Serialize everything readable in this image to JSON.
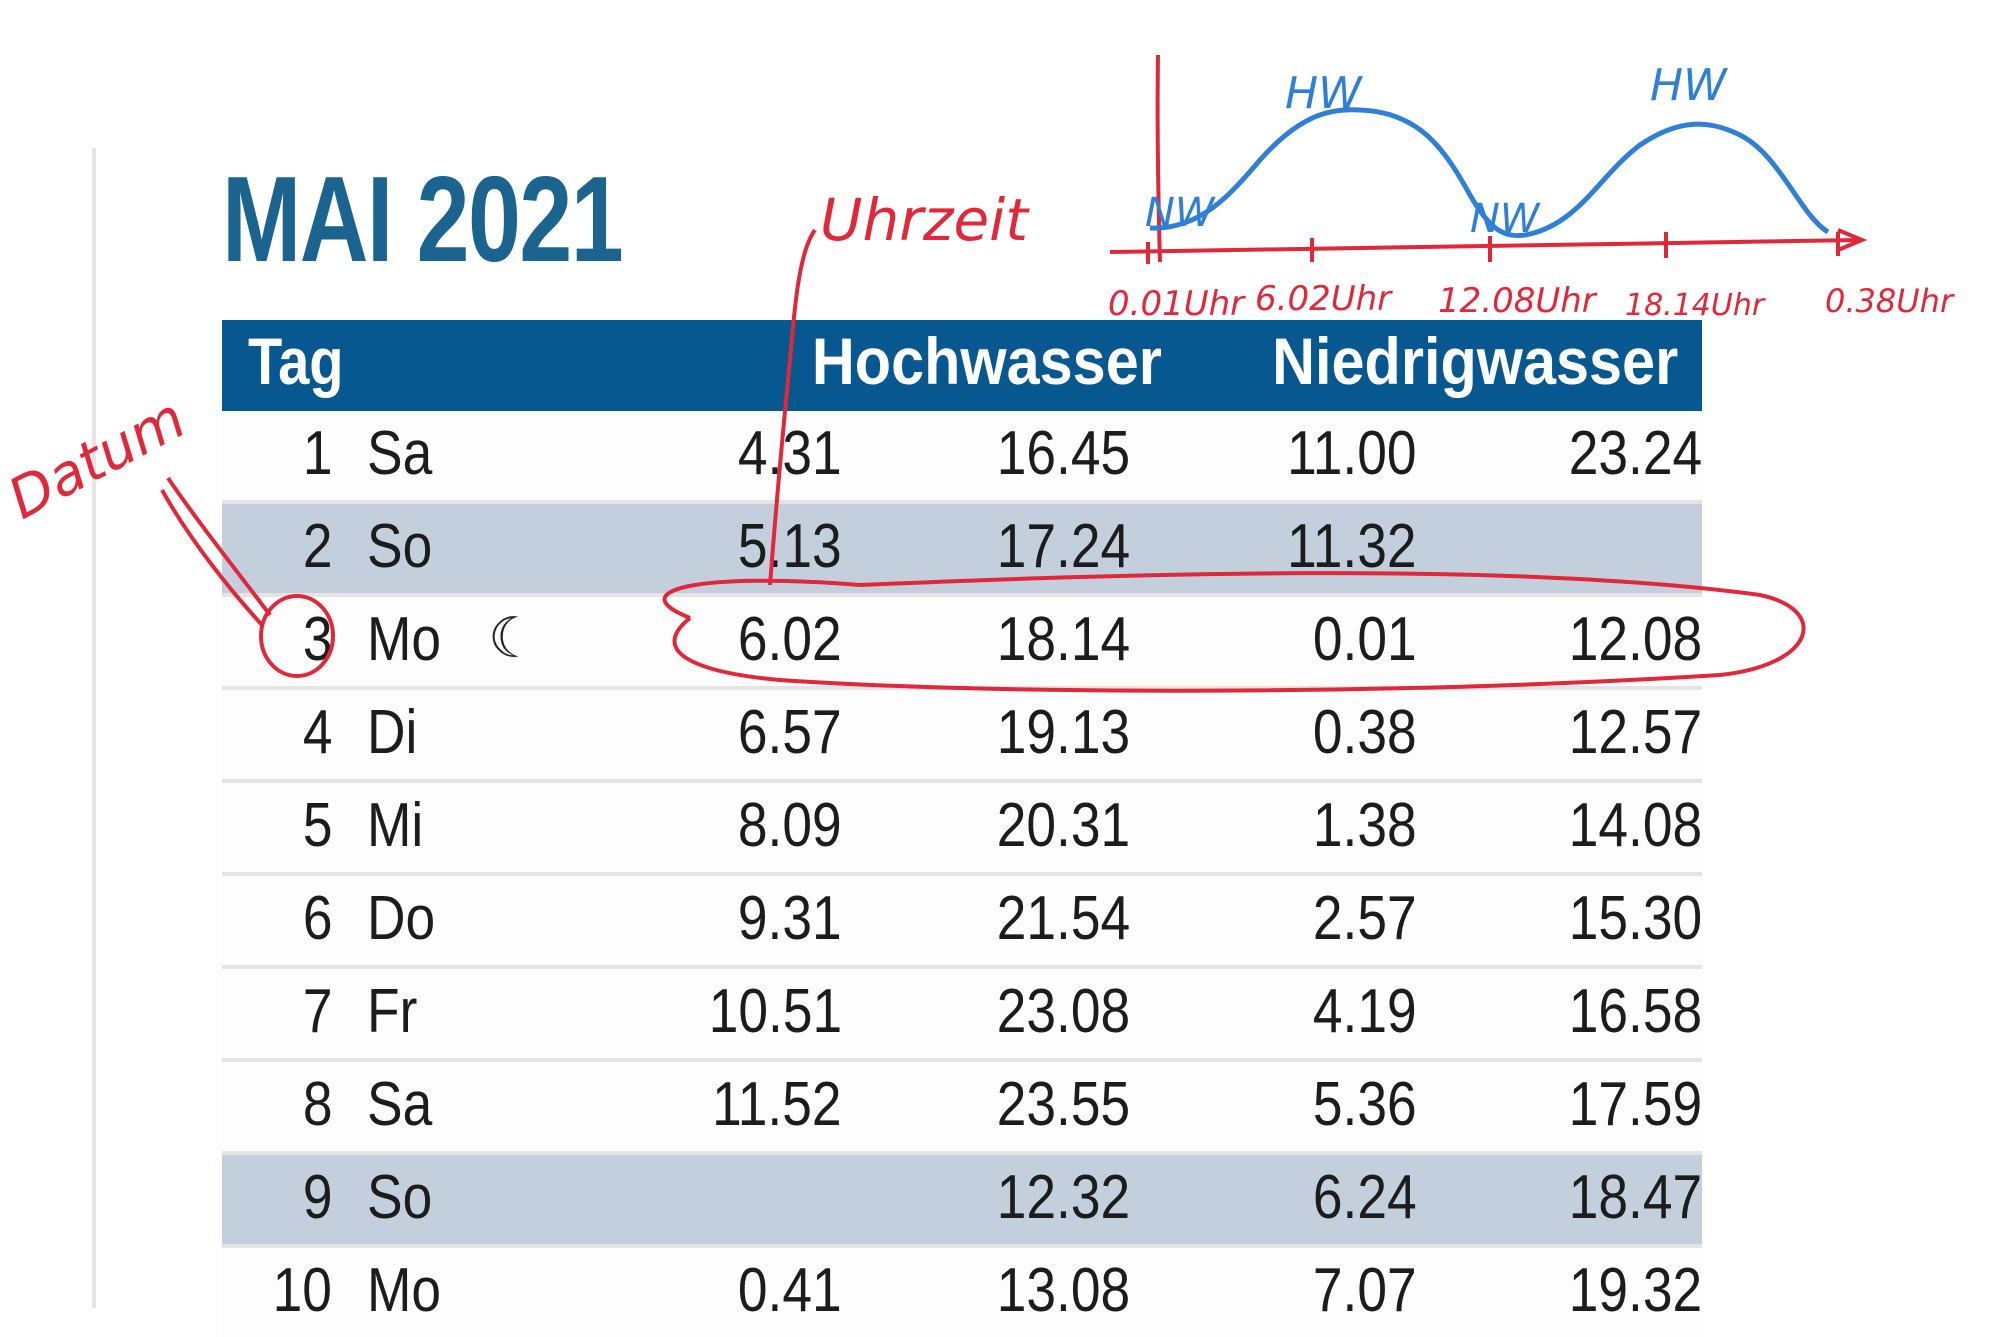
{
  "month_title": "MAI 2021",
  "table": {
    "headers": {
      "day": "Tag",
      "high_water": "Hochwasser",
      "low_water": "Niedrigwasser"
    },
    "rows": [
      {
        "day": "1",
        "weekday": "Sa",
        "moon": "",
        "hw1": "4.31",
        "hw2": "16.45",
        "nw1": "11.00",
        "nw2": "23.24",
        "shaded": false
      },
      {
        "day": "2",
        "weekday": "So",
        "moon": "",
        "hw1": "5.13",
        "hw2": "17.24",
        "nw1": "11.32",
        "nw2": "",
        "shaded": true
      },
      {
        "day": "3",
        "weekday": "Mo",
        "moon": "☾",
        "hw1": "6.02",
        "hw2": "18.14",
        "nw1": "0.01",
        "nw2": "12.08",
        "shaded": false
      },
      {
        "day": "4",
        "weekday": "Di",
        "moon": "",
        "hw1": "6.57",
        "hw2": "19.13",
        "nw1": "0.38",
        "nw2": "12.57",
        "shaded": false
      },
      {
        "day": "5",
        "weekday": "Mi",
        "moon": "",
        "hw1": "8.09",
        "hw2": "20.31",
        "nw1": "1.38",
        "nw2": "14.08",
        "shaded": false
      },
      {
        "day": "6",
        "weekday": "Do",
        "moon": "",
        "hw1": "9.31",
        "hw2": "21.54",
        "nw1": "2.57",
        "nw2": "15.30",
        "shaded": false
      },
      {
        "day": "7",
        "weekday": "Fr",
        "moon": "",
        "hw1": "10.51",
        "hw2": "23.08",
        "nw1": "4.19",
        "nw2": "16.58",
        "shaded": false
      },
      {
        "day": "8",
        "weekday": "Sa",
        "moon": "",
        "hw1": "11.52",
        "hw2": "23.55",
        "nw1": "5.36",
        "nw2": "17.59",
        "shaded": false
      },
      {
        "day": "9",
        "weekday": "So",
        "moon": "",
        "hw1": "",
        "hw2": "12.32",
        "nw1": "6.24",
        "nw2": "18.47",
        "shaded": true
      },
      {
        "day": "10",
        "weekday": "Mo",
        "moon": "",
        "hw1": "0.41",
        "hw2": "13.08",
        "nw1": "7.07",
        "nw2": "19.32",
        "shaded": false
      }
    ]
  },
  "annotations": {
    "datum_label": "Datum",
    "uhrzeit_label": "Uhrzeit",
    "sketch_peak_labels": [
      "HW",
      "HW"
    ],
    "sketch_trough_labels": [
      "NW",
      "NW"
    ],
    "sketch_time_labels": [
      "0.01Uhr",
      "6.02Uhr",
      "12.08Uhr",
      "18.14Uhr",
      "0.38Uhr"
    ]
  },
  "colors": {
    "title_blue": "#1b6490",
    "header_blue": "#075791",
    "shaded_row": "#c3cfdd",
    "annotation_red": "#e0283a",
    "sketch_blue": "#2f7fd8"
  }
}
